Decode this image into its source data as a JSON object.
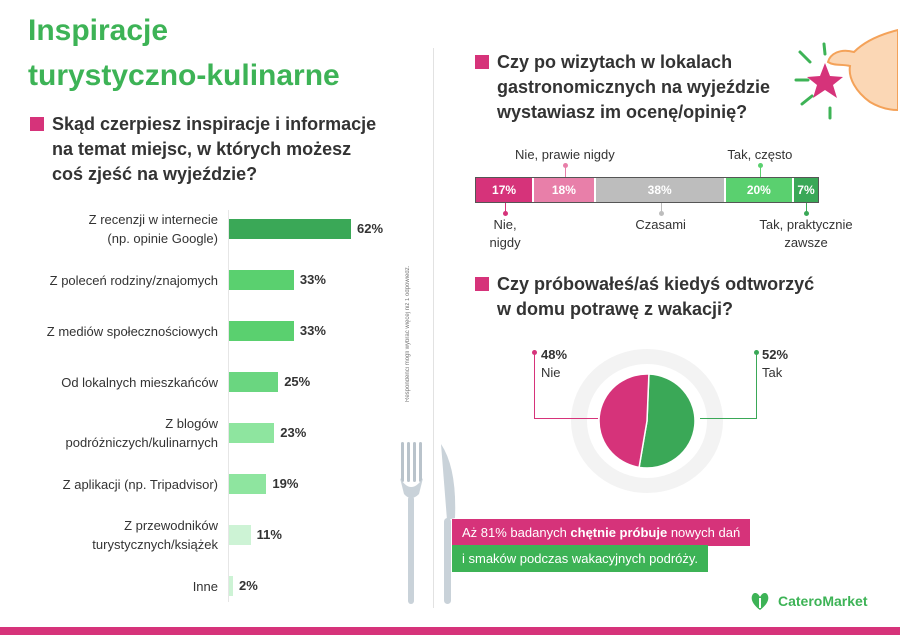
{
  "title": "Inspiracje\nturystyczno-kulinarne",
  "colors": {
    "green": "#3db356",
    "pink": "#d6337a"
  },
  "q1": {
    "text": "Skąd czerpiesz inspiracje i informacje\nna temat miejsc, w których możesz\ncoś zjeść na wyjeździe?",
    "note": "Respondenci mogli wybrać więcej niż 1 odpowiedź."
  },
  "q2": {
    "text": "Czy po wizytach w lokalach\ngastronomicznych na wyjeździe\nwystawiasz im ocenę/opinię?"
  },
  "q3": {
    "text": "Czy próbowałeś/aś kiedyś odtworzyć\nw domu potrawę z wakacji?"
  },
  "chart_data": [
    {
      "type": "bar",
      "orientation": "horizontal",
      "categories": [
        "Z recenzji w internecie\n(np. opinie Google)",
        "Z poleceń rodziny/znajomych",
        "Z mediów społecznościowych",
        "Od lokalnych mieszkańców",
        "Z blogów\npodróżniczych/kulinarnych",
        "Z aplikacji (np. Tripadvisor)",
        "Z przewodników\nturystycznych/książek",
        "Inne"
      ],
      "values": [
        62,
        33,
        33,
        25,
        23,
        19,
        11,
        2
      ],
      "value_labels": [
        "62%",
        "33%",
        "33%",
        "25%",
        "23%",
        "19%",
        "11%",
        "2%"
      ],
      "colors": [
        "#3aa857",
        "#5ad06f",
        "#5ad06f",
        "#6ad680",
        "#8ee59f",
        "#8ee59f",
        "#cdf3d5",
        "#cdf3d5"
      ],
      "xlim": [
        0,
        100
      ]
    },
    {
      "type": "bar",
      "orientation": "stacked-horizontal",
      "segments": [
        {
          "label": "Nie,\nnigdy",
          "value": 17,
          "value_label": "17%",
          "color": "#d6337a",
          "ann_pos": "below"
        },
        {
          "label": "Nie, prawie nigdy",
          "value": 18,
          "value_label": "18%",
          "color": "#e87fa9",
          "ann_pos": "above"
        },
        {
          "label": "Czasami",
          "value": 38,
          "value_label": "38%",
          "color": "#bdbdbd",
          "ann_pos": "below"
        },
        {
          "label": "Tak, często",
          "value": 20,
          "value_label": "20%",
          "color": "#5ad06f",
          "ann_pos": "above"
        },
        {
          "label": "Tak, praktycznie\nzawsze",
          "value": 7,
          "value_label": "7%",
          "color": "#3aa857",
          "ann_pos": "below"
        }
      ]
    },
    {
      "type": "pie",
      "slices": [
        {
          "label": "Tak",
          "value": 52,
          "value_label": "52%",
          "color": "#3aa857"
        },
        {
          "label": "Nie",
          "value": 48,
          "value_label": "48%",
          "color": "#d6337a"
        }
      ]
    }
  ],
  "banner": {
    "line1_pre": "Aż 81% badanych ",
    "line1_bold": "chętnie próbuje",
    "line1_post": " nowych dań",
    "line2": "i smaków podczas wakacyjnych podróży."
  },
  "logo": {
    "text": "CateroMarket"
  }
}
